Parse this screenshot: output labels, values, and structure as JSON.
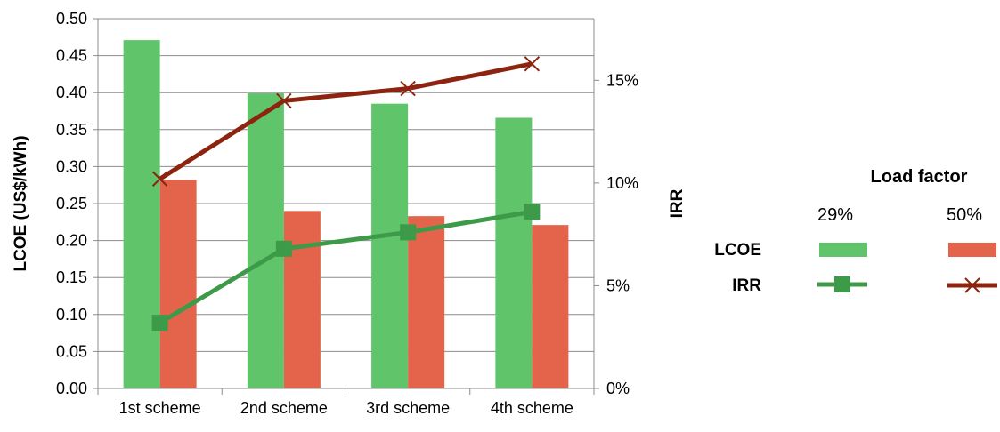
{
  "chart_data": {
    "type": "bar",
    "categories": [
      "1st scheme",
      "2nd scheme",
      "3rd scheme",
      "4th scheme"
    ],
    "series": [
      {
        "name": "LCOE 29%",
        "kind": "bar",
        "axis": "left",
        "color": "#5fc46a",
        "values": [
          0.471,
          0.399,
          0.385,
          0.366
        ]
      },
      {
        "name": "LCOE 50%",
        "kind": "bar",
        "axis": "left",
        "color": "#e4644b",
        "values": [
          0.282,
          0.24,
          0.233,
          0.221
        ]
      },
      {
        "name": "IRR 29%",
        "kind": "line",
        "axis": "right",
        "marker": "square",
        "color": "#3c9a48",
        "values": [
          3.2,
          6.8,
          7.6,
          8.6
        ]
      },
      {
        "name": "IRR 50%",
        "kind": "line",
        "axis": "right",
        "marker": "x",
        "color": "#8c2410",
        "values": [
          10.2,
          14.0,
          14.6,
          15.8
        ]
      }
    ],
    "ylabel": "LCOE (US$/kWh)",
    "y2label": "IRR",
    "ylim": [
      0,
      0.5
    ],
    "yticks": [
      "0.00",
      "0.05",
      "0.10",
      "0.15",
      "0.20",
      "0.25",
      "0.30",
      "0.35",
      "0.40",
      "0.45",
      "0.50"
    ],
    "y2lim": [
      0,
      18
    ],
    "y2ticks": [
      {
        "value": 0,
        "label": "0%"
      },
      {
        "value": 5,
        "label": "5%"
      },
      {
        "value": 10,
        "label": "10%"
      },
      {
        "value": 15,
        "label": "15%"
      }
    ],
    "grid": "horizontal",
    "legend": {
      "title": "Load factor",
      "columns": [
        "29%",
        "50%"
      ],
      "rows": [
        "LCOE",
        "IRR"
      ],
      "placement": "right"
    }
  }
}
